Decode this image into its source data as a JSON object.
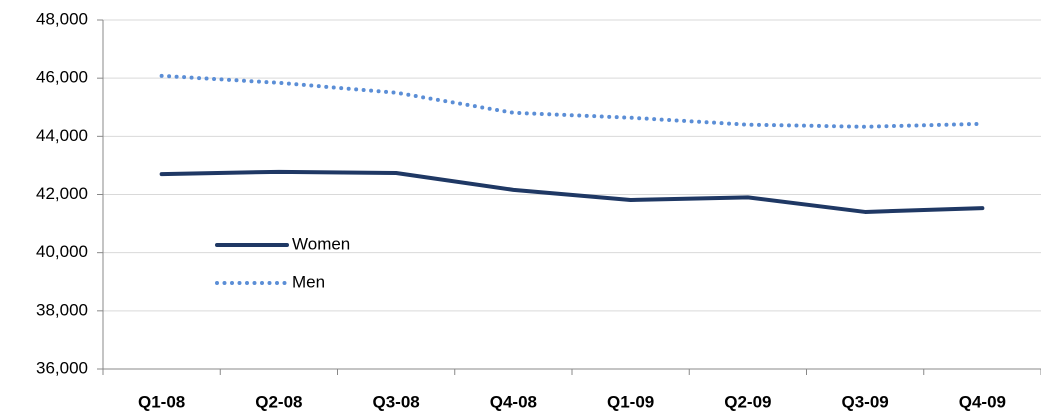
{
  "chart_data": {
    "type": "line",
    "categories": [
      "Q1-08",
      "Q2-08",
      "Q3-08",
      "Q4-08",
      "Q1-09",
      "Q2-09",
      "Q3-09",
      "Q4-09"
    ],
    "series": [
      {
        "name": "Women",
        "color": "#1f3864",
        "style": "solid",
        "values": [
          42700,
          42780,
          42740,
          42160,
          41810,
          41900,
          41400,
          41530
        ]
      },
      {
        "name": "Men",
        "color": "#5b8ed6",
        "style": "dotted",
        "values": [
          46080,
          45840,
          45500,
          44810,
          44640,
          44400,
          44330,
          44430
        ]
      }
    ],
    "ylim": [
      36000,
      48000
    ],
    "yticks": [
      {
        "value": 36000,
        "label": "36,000"
      },
      {
        "value": 38000,
        "label": "38,000"
      },
      {
        "value": 40000,
        "label": "40,000"
      },
      {
        "value": 42000,
        "label": "42,000"
      },
      {
        "value": 44000,
        "label": "44,000"
      },
      {
        "value": 46000,
        "label": "46,000"
      },
      {
        "value": 48000,
        "label": "48,000"
      }
    ],
    "grid": true
  }
}
